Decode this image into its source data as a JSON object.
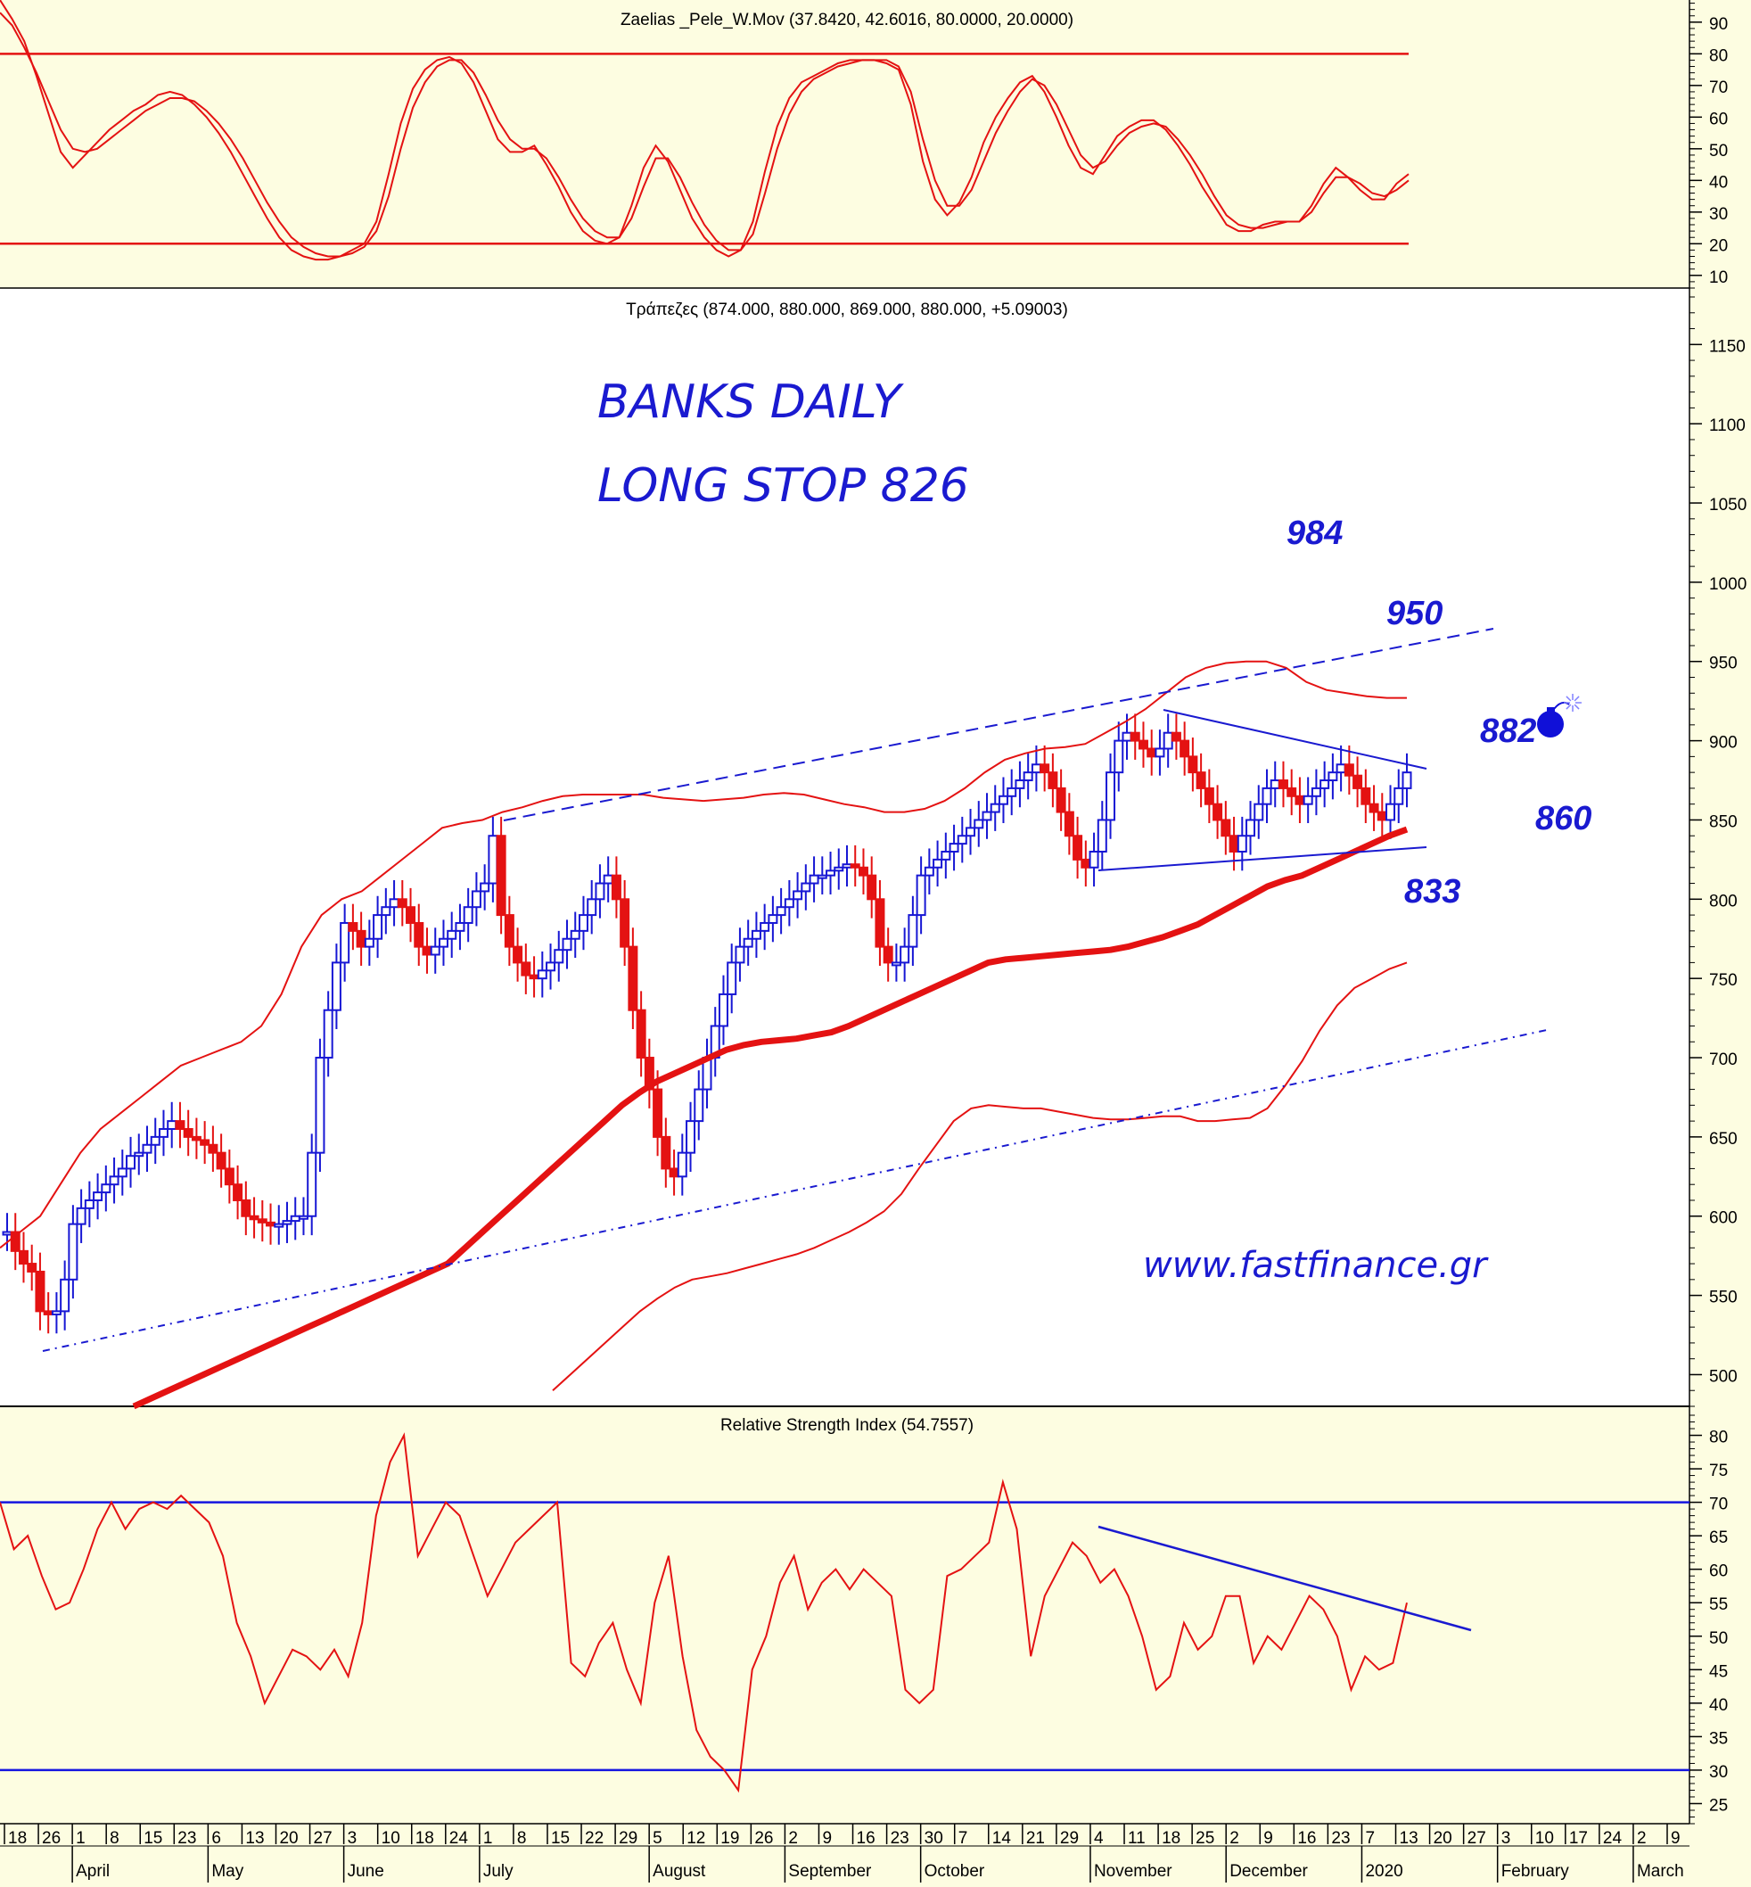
{
  "colors": {
    "background": "#fdfde1",
    "indicator_line": "#e41212",
    "price_bull": "#1717d4",
    "price_bear": "#e41212",
    "annotation": "#1a1ad0",
    "level_line": "#e41212",
    "rsi_level": "#1515e0",
    "axis": "#000000"
  },
  "chart_data": [
    {
      "type": "line",
      "title": "Zaelias _Pele_W.Mov (37.8420, 42.6016, 80.0000, 20.0000)",
      "ylim": [
        6,
        97
      ],
      "y_ticks": [
        10,
        20,
        30,
        40,
        50,
        60,
        70,
        80,
        90
      ],
      "levels": [
        80,
        20
      ],
      "series": [
        {
          "values": [
            97,
            91,
            84,
            73,
            61,
            49,
            44,
            48,
            52,
            56,
            59,
            62,
            64,
            67,
            68,
            67,
            64,
            60,
            55,
            49,
            42,
            35,
            28,
            22,
            18,
            16,
            15,
            15,
            16,
            18,
            20,
            27,
            42,
            58,
            69,
            75,
            78,
            79,
            77,
            71,
            62,
            53,
            49,
            49,
            51,
            45,
            38,
            30,
            24,
            21,
            20,
            22,
            32,
            44,
            51,
            46,
            37,
            28,
            22,
            18,
            16,
            18,
            27,
            43,
            57,
            66,
            71,
            73,
            75,
            77,
            78,
            78,
            78,
            77,
            75,
            64,
            46,
            34,
            29,
            33,
            41,
            52,
            60,
            66,
            71,
            73,
            68,
            60,
            51,
            44,
            42,
            48,
            54,
            57,
            59,
            59,
            56,
            51,
            45,
            38,
            32,
            26,
            24,
            24,
            26,
            27,
            27,
            27,
            32,
            39,
            44,
            41,
            37,
            34,
            34,
            39,
            42
          ]
        },
        {
          "values": [
            93,
            89,
            82,
            74,
            65,
            56,
            50,
            49,
            50,
            53,
            56,
            59,
            62,
            64,
            66,
            66,
            65,
            62,
            58,
            53,
            47,
            40,
            33,
            27,
            22,
            19,
            17,
            16,
            16,
            17,
            19,
            24,
            35,
            50,
            63,
            71,
            76,
            78,
            78,
            74,
            67,
            59,
            53,
            50,
            50,
            47,
            41,
            34,
            28,
            24,
            22,
            22,
            28,
            38,
            47,
            47,
            41,
            33,
            26,
            21,
            18,
            18,
            23,
            36,
            50,
            61,
            68,
            72,
            74,
            76,
            77,
            78,
            78,
            78,
            76,
            68,
            53,
            40,
            32,
            32,
            37,
            46,
            55,
            62,
            68,
            72,
            70,
            64,
            56,
            48,
            44,
            46,
            51,
            55,
            57,
            58,
            57,
            53,
            48,
            42,
            35,
            29,
            26,
            25,
            25,
            26,
            27,
            27,
            30,
            36,
            41,
            41,
            39,
            36,
            35,
            37,
            40
          ]
        }
      ]
    },
    {
      "type": "candlestick",
      "title": "Τράπεζες (874.000, 880.000, 869.000, 880.000, +5.09003)",
      "ylim": [
        480,
        1180
      ],
      "y_ticks": [
        500,
        550,
        600,
        650,
        700,
        750,
        800,
        850,
        900,
        950,
        1000,
        1050,
        1100,
        1150
      ],
      "close": [
        590,
        578,
        570,
        565,
        540,
        538,
        540,
        560,
        595,
        605,
        610,
        615,
        620,
        625,
        630,
        638,
        640,
        645,
        650,
        655,
        660,
        655,
        650,
        648,
        645,
        640,
        630,
        620,
        610,
        600,
        598,
        596,
        594,
        595,
        597,
        600,
        600,
        640,
        700,
        730,
        760,
        785,
        780,
        770,
        775,
        790,
        795,
        800,
        795,
        785,
        770,
        765,
        770,
        775,
        780,
        785,
        795,
        805,
        810,
        840,
        790,
        770,
        760,
        752,
        750,
        755,
        760,
        768,
        775,
        780,
        790,
        800,
        810,
        815,
        800,
        770,
        730,
        700,
        680,
        650,
        630,
        625,
        640,
        660,
        680,
        700,
        720,
        740,
        760,
        770,
        775,
        780,
        785,
        790,
        795,
        800,
        805,
        810,
        815,
        815,
        818,
        820,
        822,
        820,
        815,
        800,
        770,
        760,
        760,
        770,
        790,
        815,
        820,
        825,
        830,
        835,
        840,
        845,
        850,
        855,
        860,
        865,
        870,
        875,
        880,
        885,
        880,
        870,
        855,
        840,
        825,
        820,
        830,
        850,
        880,
        900,
        905,
        900,
        895,
        890,
        895,
        905,
        900,
        890,
        880,
        870,
        860,
        850,
        840,
        830,
        840,
        850,
        860,
        870,
        875,
        870,
        865,
        860,
        865,
        870,
        875,
        880,
        885,
        878,
        870,
        860,
        855,
        850,
        860,
        870,
        880
      ],
      "moving_average": [
        480,
        485,
        490,
        495,
        500,
        505,
        510,
        515,
        520,
        525,
        530,
        535,
        540,
        545,
        550,
        555,
        560,
        565,
        570,
        580,
        590,
        600,
        610,
        620,
        630,
        640,
        650,
        660,
        670,
        678,
        685,
        690,
        695,
        700,
        705,
        708,
        710,
        711,
        712,
        714,
        716,
        720,
        725,
        730,
        735,
        740,
        745,
        750,
        755,
        760,
        762,
        763,
        764,
        765,
        766,
        767,
        768,
        770,
        773,
        776,
        780,
        784,
        790,
        796,
        802,
        808,
        812,
        815,
        820,
        825,
        830,
        835,
        840,
        844
      ],
      "upper_band": [
        580,
        590,
        600,
        620,
        640,
        655,
        665,
        675,
        685,
        695,
        700,
        705,
        710,
        720,
        740,
        770,
        790,
        800,
        805,
        815,
        825,
        835,
        845,
        848,
        850,
        855,
        858,
        862,
        865,
        866,
        866,
        866,
        866,
        864,
        863,
        862,
        863,
        864,
        866,
        867,
        866,
        863,
        860,
        858,
        855,
        855,
        857,
        862,
        870,
        880,
        888,
        892,
        895,
        896,
        898,
        905,
        912,
        920,
        930,
        940,
        946,
        949,
        950,
        950,
        946,
        937,
        932,
        930,
        928,
        927,
        927
      ],
      "lower_band": [
        490,
        500,
        510,
        520,
        530,
        540,
        548,
        555,
        560,
        562,
        564,
        567,
        570,
        573,
        576,
        580,
        585,
        590,
        596,
        603,
        614,
        630,
        645,
        660,
        668,
        670,
        669,
        668,
        668,
        666,
        664,
        662,
        661,
        661,
        662,
        663,
        663,
        660,
        660,
        661,
        662,
        668,
        682,
        698,
        717,
        733,
        744,
        750,
        756,
        760
      ]
    },
    {
      "type": "line",
      "title": "Relative Strength Index (54.7557)",
      "ylim": [
        22,
        83
      ],
      "y_ticks": [
        25,
        30,
        35,
        40,
        45,
        50,
        55,
        60,
        65,
        70,
        75,
        80
      ],
      "levels": [
        70,
        30
      ],
      "series": [
        {
          "values": [
            70,
            63,
            65,
            59,
            54,
            55,
            60,
            66,
            70,
            66,
            69,
            70,
            69,
            71,
            69,
            67,
            62,
            52,
            47,
            40,
            44,
            48,
            47,
            45,
            48,
            44,
            52,
            68,
            76,
            80,
            62,
            66,
            70,
            68,
            62,
            56,
            60,
            64,
            66,
            68,
            70,
            46,
            44,
            49,
            52,
            45,
            40,
            55,
            62,
            47,
            36,
            32,
            30,
            27,
            45,
            50,
            58,
            62,
            54,
            58,
            60,
            57,
            60,
            58,
            56,
            42,
            40,
            42,
            59,
            60,
            62,
            64,
            73,
            66,
            47,
            56,
            60,
            64,
            62,
            58,
            60,
            56,
            50,
            42,
            44,
            52,
            48,
            50,
            56,
            56,
            46,
            50,
            48,
            52,
            56,
            54,
            50,
            42,
            47,
            45,
            46,
            55
          ]
        }
      ]
    }
  ],
  "annotations": {
    "title_line1": "BANKS DAILY",
    "title_line2": "LONG STOP 826",
    "website": "www.fastfinance.gr",
    "levels": [
      "984",
      "950",
      "882",
      "860",
      "833"
    ]
  },
  "bomb_icon": "bomb-icon",
  "x_axis": {
    "day_ticks": [
      "18",
      "26",
      "1",
      "8",
      "15",
      "23",
      "6",
      "13",
      "20",
      "27",
      "3",
      "10",
      "18",
      "24",
      "1",
      "8",
      "15",
      "22",
      "29",
      "5",
      "12",
      "19",
      "26",
      "2",
      "9",
      "16",
      "23",
      "30",
      "7",
      "14",
      "21",
      "29",
      "4",
      "11",
      "18",
      "25",
      "2",
      "9",
      "16",
      "23",
      "7",
      "13",
      "20",
      "27",
      "3",
      "10",
      "17",
      "24",
      "2",
      "9"
    ],
    "months": [
      "April",
      "May",
      "June",
      "July",
      "August",
      "September",
      "October",
      "November",
      "December",
      "2020",
      "February",
      "March"
    ]
  }
}
